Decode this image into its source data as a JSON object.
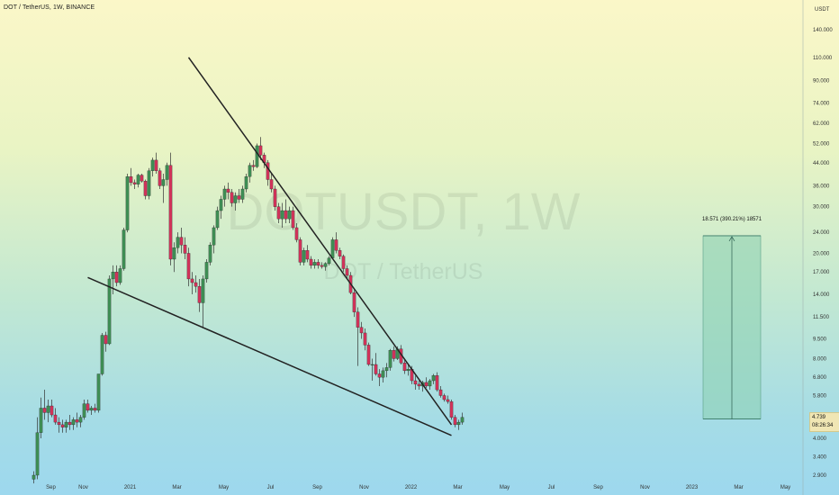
{
  "header": {
    "symbol_line": "DOT / TetherUS, 1W, BINANCE"
  },
  "watermark": {
    "line1": "DOTUSDT, 1W",
    "line2": "DOT / TetherUS"
  },
  "price_badge": {
    "price": "4.739",
    "countdown": "08:26:34"
  },
  "measure": {
    "label": "18.571 (390.21%) 18571"
  },
  "colors": {
    "up": "#3f8f55",
    "down": "#d2335a",
    "wick": "#333333",
    "trendline": "#222222",
    "measure_fill": "#8ad0b0",
    "measure_border": "#5a9e88"
  },
  "chart_data": {
    "type": "candlestick",
    "title": "DOT / TetherUS, 1W, BINANCE",
    "y_axis": {
      "unit": "USDT",
      "scale": "log",
      "ticks": [
        140,
        110,
        90,
        74,
        62,
        52,
        44,
        36,
        30,
        24,
        20,
        17,
        14,
        11.5,
        9.5,
        8,
        6.8,
        5.8,
        4.7,
        4.0,
        3.4,
        2.9
      ],
      "tick_labels": [
        "140.000",
        "110.000",
        "90.000",
        "74.000",
        "62.000",
        "52.000",
        "44.000",
        "36.000",
        "30.000",
        "24.000",
        "20.000",
        "17.000",
        "14.000",
        "11.500",
        "9.500",
        "8.000",
        "6.800",
        "5.800",
        "4.700",
        "4.000",
        "3.400",
        "2.900"
      ]
    },
    "x_axis": {
      "ticks": [
        0,
        9,
        22,
        35,
        48,
        61,
        74,
        87,
        100,
        113,
        126,
        139,
        152,
        165,
        178,
        191,
        204
      ],
      "tick_labels": [
        "Sep",
        "Nov",
        "2021",
        "Mar",
        "May",
        "Jul",
        "Sep",
        "Nov",
        "2022",
        "Mar",
        "May",
        "Jul",
        "Sep",
        "Nov",
        "2023",
        "Mar",
        "May"
      ]
    },
    "candles": [
      [
        2.8,
        3.0,
        2.7,
        2.9
      ],
      [
        2.9,
        4.8,
        2.8,
        4.2
      ],
      [
        4.2,
        5.7,
        4.0,
        5.2
      ],
      [
        5.2,
        6.1,
        4.7,
        5.0
      ],
      [
        5.0,
        5.6,
        4.6,
        5.3
      ],
      [
        5.3,
        5.6,
        4.8,
        4.9
      ],
      [
        4.9,
        5.2,
        4.5,
        4.6
      ],
      [
        4.6,
        4.8,
        4.2,
        4.5
      ],
      [
        4.5,
        4.7,
        4.2,
        4.4
      ],
      [
        4.4,
        4.7,
        4.2,
        4.6
      ],
      [
        4.6,
        4.9,
        4.3,
        4.5
      ],
      [
        4.5,
        4.8,
        4.3,
        4.7
      ],
      [
        4.7,
        5.0,
        4.4,
        4.6
      ],
      [
        4.6,
        4.9,
        4.4,
        4.8
      ],
      [
        4.8,
        5.6,
        4.7,
        5.4
      ],
      [
        5.4,
        5.6,
        5.0,
        5.1
      ],
      [
        5.1,
        5.3,
        4.9,
        5.2
      ],
      [
        5.2,
        5.4,
        5.0,
        5.1
      ],
      [
        5.1,
        7.0,
        5.0,
        7.0
      ],
      [
        7.0,
        10.0,
        6.9,
        9.8
      ],
      [
        9.8,
        10.1,
        8.5,
        9.1
      ],
      [
        9.1,
        16.5,
        9.0,
        16.0
      ],
      [
        16.0,
        18.0,
        14.0,
        17.0
      ],
      [
        17.0,
        18.0,
        15.0,
        15.5
      ],
      [
        15.5,
        18.0,
        15.2,
        17.5
      ],
      [
        17.5,
        25.0,
        17.2,
        24.5
      ],
      [
        24.5,
        40.0,
        24.0,
        39.0
      ],
      [
        39.0,
        42.0,
        36.0,
        37.0
      ],
      [
        37.0,
        38.0,
        35.0,
        36.5
      ],
      [
        36.5,
        40.0,
        35.5,
        39.5
      ],
      [
        39.5,
        40.0,
        37.0,
        37.5
      ],
      [
        37.5,
        38.0,
        32.0,
        33.0
      ],
      [
        33.0,
        42.0,
        32.0,
        41.0
      ],
      [
        41.0,
        46.0,
        39.0,
        45.0
      ],
      [
        45.0,
        48.0,
        40.0,
        41.0
      ],
      [
        41.0,
        42.0,
        35.0,
        36.0
      ],
      [
        36.0,
        40.0,
        31.0,
        38.0
      ],
      [
        38.0,
        44.0,
        36.0,
        43.0
      ],
      [
        43.0,
        48.0,
        18.0,
        19.0
      ],
      [
        19.0,
        22.0,
        17.0,
        21.0
      ],
      [
        21.0,
        24.0,
        20.0,
        23.0
      ],
      [
        23.0,
        25.0,
        20.0,
        21.5
      ],
      [
        21.5,
        23.0,
        19.0,
        20.0
      ],
      [
        20.0,
        21.0,
        15.0,
        16.0
      ],
      [
        16.0,
        17.0,
        14.0,
        15.5
      ],
      [
        15.5,
        16.5,
        14.2,
        15.0
      ],
      [
        15.0,
        16.0,
        12.0,
        13.0
      ],
      [
        13.0,
        16.5,
        10.5,
        16.0
      ],
      [
        16.0,
        19.0,
        15.5,
        18.5
      ],
      [
        18.5,
        22.0,
        18.0,
        21.5
      ],
      [
        21.5,
        25.5,
        20.0,
        25.0
      ],
      [
        25.0,
        30.0,
        24.5,
        29.0
      ],
      [
        29.0,
        33.0,
        27.0,
        32.0
      ],
      [
        32.0,
        36.0,
        30.0,
        35.0
      ],
      [
        35.0,
        37.0,
        32.0,
        34.0
      ],
      [
        34.0,
        35.0,
        30.0,
        31.0
      ],
      [
        31.0,
        34.0,
        29.0,
        33.0
      ],
      [
        33.0,
        35.0,
        31.0,
        32.0
      ],
      [
        32.0,
        36.0,
        31.0,
        35.0
      ],
      [
        35.0,
        40.0,
        34.0,
        39.0
      ],
      [
        39.0,
        44.0,
        37.0,
        43.0
      ],
      [
        43.0,
        45.0,
        41.0,
        42.5
      ],
      [
        42.5,
        52.0,
        42.0,
        51.0
      ],
      [
        51.0,
        55.0,
        45.0,
        47.0
      ],
      [
        47.0,
        48.0,
        42.0,
        44.0
      ],
      [
        44.0,
        45.0,
        36.0,
        38.0
      ],
      [
        38.0,
        40.0,
        34.0,
        35.0
      ],
      [
        35.0,
        36.0,
        29.0,
        30.0
      ],
      [
        30.0,
        31.0,
        26.0,
        27.0
      ],
      [
        27.0,
        31.0,
        25.0,
        29.0
      ],
      [
        29.0,
        32.0,
        26.0,
        27.0
      ],
      [
        27.0,
        30.0,
        26.0,
        29.0
      ],
      [
        29.0,
        30.0,
        24.5,
        25.0
      ],
      [
        25.0,
        26.0,
        22.0,
        22.5
      ],
      [
        22.5,
        23.0,
        18.0,
        18.5
      ],
      [
        18.5,
        21.0,
        18.0,
        20.5
      ],
      [
        20.5,
        21.5,
        18.5,
        19.0
      ],
      [
        19.0,
        19.5,
        17.5,
        18.0
      ],
      [
        18.0,
        19.0,
        17.5,
        18.5
      ],
      [
        18.5,
        19.0,
        17.5,
        18.0
      ],
      [
        18.0,
        18.5,
        17.5,
        17.8
      ],
      [
        17.8,
        18.5,
        17.2,
        18.3
      ],
      [
        18.3,
        19.5,
        18.0,
        19.2
      ],
      [
        19.2,
        23.0,
        19.0,
        22.5
      ],
      [
        22.5,
        24.0,
        20.0,
        20.5
      ],
      [
        20.5,
        21.0,
        19.0,
        19.5
      ],
      [
        19.5,
        19.8,
        17.0,
        17.5
      ],
      [
        17.5,
        18.0,
        16.0,
        16.5
      ],
      [
        16.5,
        17.0,
        14.0,
        14.2
      ],
      [
        14.2,
        14.5,
        11.5,
        12.0
      ],
      [
        12.0,
        12.5,
        7.5,
        10.5
      ],
      [
        10.5,
        11.0,
        9.5,
        10.0
      ],
      [
        10.0,
        10.4,
        8.6,
        9.0
      ],
      [
        9.0,
        9.2,
        7.5,
        7.6
      ],
      [
        7.6,
        8.0,
        6.6,
        7.6
      ],
      [
        7.6,
        8.4,
        6.9,
        7.0
      ],
      [
        7.0,
        7.3,
        6.3,
        6.8
      ],
      [
        6.8,
        7.4,
        6.5,
        7.2
      ],
      [
        7.2,
        7.7,
        6.8,
        7.4
      ],
      [
        7.4,
        8.7,
        7.2,
        8.6
      ],
      [
        8.6,
        8.9,
        7.8,
        8.0
      ],
      [
        8.0,
        8.9,
        7.9,
        8.7
      ],
      [
        8.7,
        9.0,
        7.6,
        7.7
      ],
      [
        7.7,
        8.0,
        7.0,
        7.2
      ],
      [
        7.2,
        7.6,
        6.9,
        7.3
      ],
      [
        7.3,
        7.5,
        6.4,
        6.6
      ],
      [
        6.6,
        6.9,
        6.1,
        6.4
      ],
      [
        6.4,
        6.6,
        6.1,
        6.3
      ],
      [
        6.3,
        6.6,
        6.0,
        6.5
      ],
      [
        6.5,
        6.8,
        6.2,
        6.3
      ],
      [
        6.3,
        6.7,
        6.1,
        6.6
      ],
      [
        6.6,
        7.0,
        6.4,
        6.9
      ],
      [
        6.9,
        7.1,
        6.0,
        6.1
      ],
      [
        6.1,
        6.3,
        5.7,
        5.8
      ],
      [
        5.8,
        5.9,
        5.5,
        5.6
      ],
      [
        5.6,
        5.8,
        5.4,
        5.5
      ],
      [
        5.5,
        5.6,
        4.7,
        4.8
      ],
      [
        4.8,
        4.9,
        4.4,
        4.5
      ],
      [
        4.5,
        4.7,
        4.3,
        4.6
      ],
      [
        4.6,
        5.0,
        4.5,
        4.8
      ]
    ],
    "trendlines": [
      {
        "name": "upper",
        "from": {
          "bar": 43,
          "price": 110
        },
        "to": {
          "bar": 116,
          "price": 4.5
        }
      },
      {
        "name": "lower",
        "from": {
          "bar": 15,
          "price": 16.2
        },
        "to": {
          "bar": 116,
          "price": 4.1
        }
      }
    ],
    "measurement": {
      "from_price": 4.73,
      "to_price": 23.3,
      "change": 18.571,
      "percent": 390.21,
      "ticks": 18571
    }
  }
}
